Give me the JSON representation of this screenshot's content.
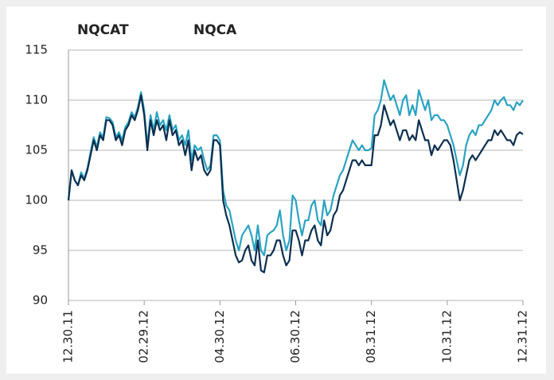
{
  "chart_data": {
    "type": "line",
    "categories": [
      "12.30.11",
      null,
      null,
      null,
      null,
      null,
      null,
      null,
      null,
      null,
      null,
      null,
      null,
      null,
      null,
      null,
      null,
      null,
      null,
      null,
      null,
      null,
      null,
      null,
      "02.29.12",
      null,
      null,
      null,
      null,
      null,
      null,
      null,
      null,
      null,
      null,
      null,
      null,
      null,
      null,
      null,
      null,
      null,
      null,
      null,
      null,
      null,
      null,
      null,
      "04.30.12",
      null,
      null,
      null,
      null,
      null,
      null,
      null,
      null,
      null,
      null,
      null,
      null,
      null,
      null,
      null,
      null,
      null,
      null,
      null,
      null,
      null,
      null,
      null,
      "06.30.12",
      null,
      null,
      null,
      null,
      null,
      null,
      null,
      null,
      null,
      null,
      null,
      null,
      null,
      null,
      null,
      null,
      null,
      null,
      null,
      null,
      null,
      null,
      null,
      "08.31.12",
      null,
      null,
      null,
      null,
      null,
      null,
      null,
      null,
      null,
      null,
      null,
      null,
      null,
      null,
      null,
      null,
      null,
      null,
      null,
      null,
      null,
      null,
      null,
      "10.31.12",
      null,
      null,
      null,
      null,
      null,
      null,
      null,
      null,
      null,
      null,
      null,
      null,
      null,
      null,
      null,
      null,
      null,
      null,
      null,
      null,
      null,
      null,
      null,
      "12.31.12"
    ],
    "series": [
      {
        "name": "NQCAT",
        "color": "#2aa3c2",
        "values": [
          100,
          103,
          102,
          101.5,
          102.8,
          102.2,
          103.2,
          104.8,
          106.3,
          105.3,
          106.8,
          106.3,
          108.3,
          108.2,
          107.8,
          106.3,
          106.8,
          106,
          107.3,
          107.8,
          108.8,
          108.3,
          109.3,
          110.8,
          109,
          105.5,
          108.5,
          107,
          108.8,
          107.5,
          108,
          107,
          108.5,
          107,
          107.5,
          106,
          106.5,
          105.5,
          107,
          104,
          105.5,
          105,
          105.3,
          104,
          103,
          103.5,
          106.5,
          106.5,
          106,
          101,
          99.5,
          99,
          97.5,
          96,
          95,
          96.5,
          97,
          97.5,
          96.5,
          95,
          97.5,
          95,
          94.5,
          96.5,
          96.8,
          97,
          97.5,
          99,
          96.5,
          95,
          96,
          100.5,
          100,
          98,
          96.5,
          98,
          98,
          99.5,
          100,
          98,
          97.5,
          100,
          98.5,
          99,
          100.5,
          101.5,
          102.5,
          103,
          104,
          105,
          106,
          105.5,
          105,
          105.5,
          105,
          105,
          105.2,
          108.5,
          109,
          110,
          112,
          111,
          110,
          110.5,
          109.5,
          108.5,
          110,
          110.5,
          108.5,
          109.5,
          108.5,
          111,
          110,
          109,
          110,
          108,
          108.5,
          108.5,
          108,
          108,
          107.5,
          106.5,
          105.5,
          104,
          102.5,
          103.5,
          105.5,
          106.5,
          107,
          106.5,
          107.5,
          107.5,
          108,
          108.5,
          109,
          110,
          109.5,
          110,
          110.3,
          109.5,
          109.5,
          109,
          109.8,
          109.5,
          110
        ]
      },
      {
        "name": "NQCA",
        "color": "#0c2f4f",
        "values": [
          100,
          103,
          102,
          101.5,
          102.5,
          102,
          103,
          104.5,
          106,
          105,
          106.5,
          106,
          108,
          108,
          107.5,
          106,
          106.5,
          105.5,
          107,
          107.5,
          108.5,
          108,
          109,
          110.5,
          108.5,
          105,
          108,
          106.5,
          108,
          107,
          107.5,
          106,
          108,
          106.5,
          107,
          105.5,
          106,
          104.5,
          106,
          103,
          105,
          104,
          104.5,
          103,
          102.5,
          103,
          106,
          106,
          105.5,
          100,
          98.5,
          97.5,
          96,
          94.5,
          93.8,
          94,
          95,
          95.5,
          94,
          93.5,
          96,
          93,
          92.8,
          94.5,
          94.5,
          95,
          96,
          96,
          94.5,
          93.5,
          94,
          97,
          97,
          96,
          94.5,
          96,
          96,
          97,
          97.5,
          96,
          95.5,
          98,
          96.5,
          97,
          98.5,
          99,
          100.5,
          101,
          102,
          103,
          104,
          104,
          103.5,
          104,
          103.5,
          103.5,
          103.5,
          106.5,
          106.5,
          107.5,
          109.5,
          108.5,
          107.5,
          108,
          107,
          106,
          107,
          107,
          106,
          106.5,
          106,
          108,
          107,
          106,
          106,
          104.5,
          105.5,
          105,
          105.5,
          106,
          106,
          105.5,
          104,
          102,
          100,
          101,
          102.5,
          104,
          104.5,
          104,
          104.5,
          105,
          105.5,
          106,
          106,
          107,
          106.5,
          107,
          106.5,
          106,
          106,
          105.5,
          106.5,
          106.8,
          106.6
        ]
      }
    ],
    "ylim": [
      90,
      115
    ],
    "yticks": [
      90,
      95,
      100,
      105,
      110,
      115
    ],
    "grid": true
  }
}
